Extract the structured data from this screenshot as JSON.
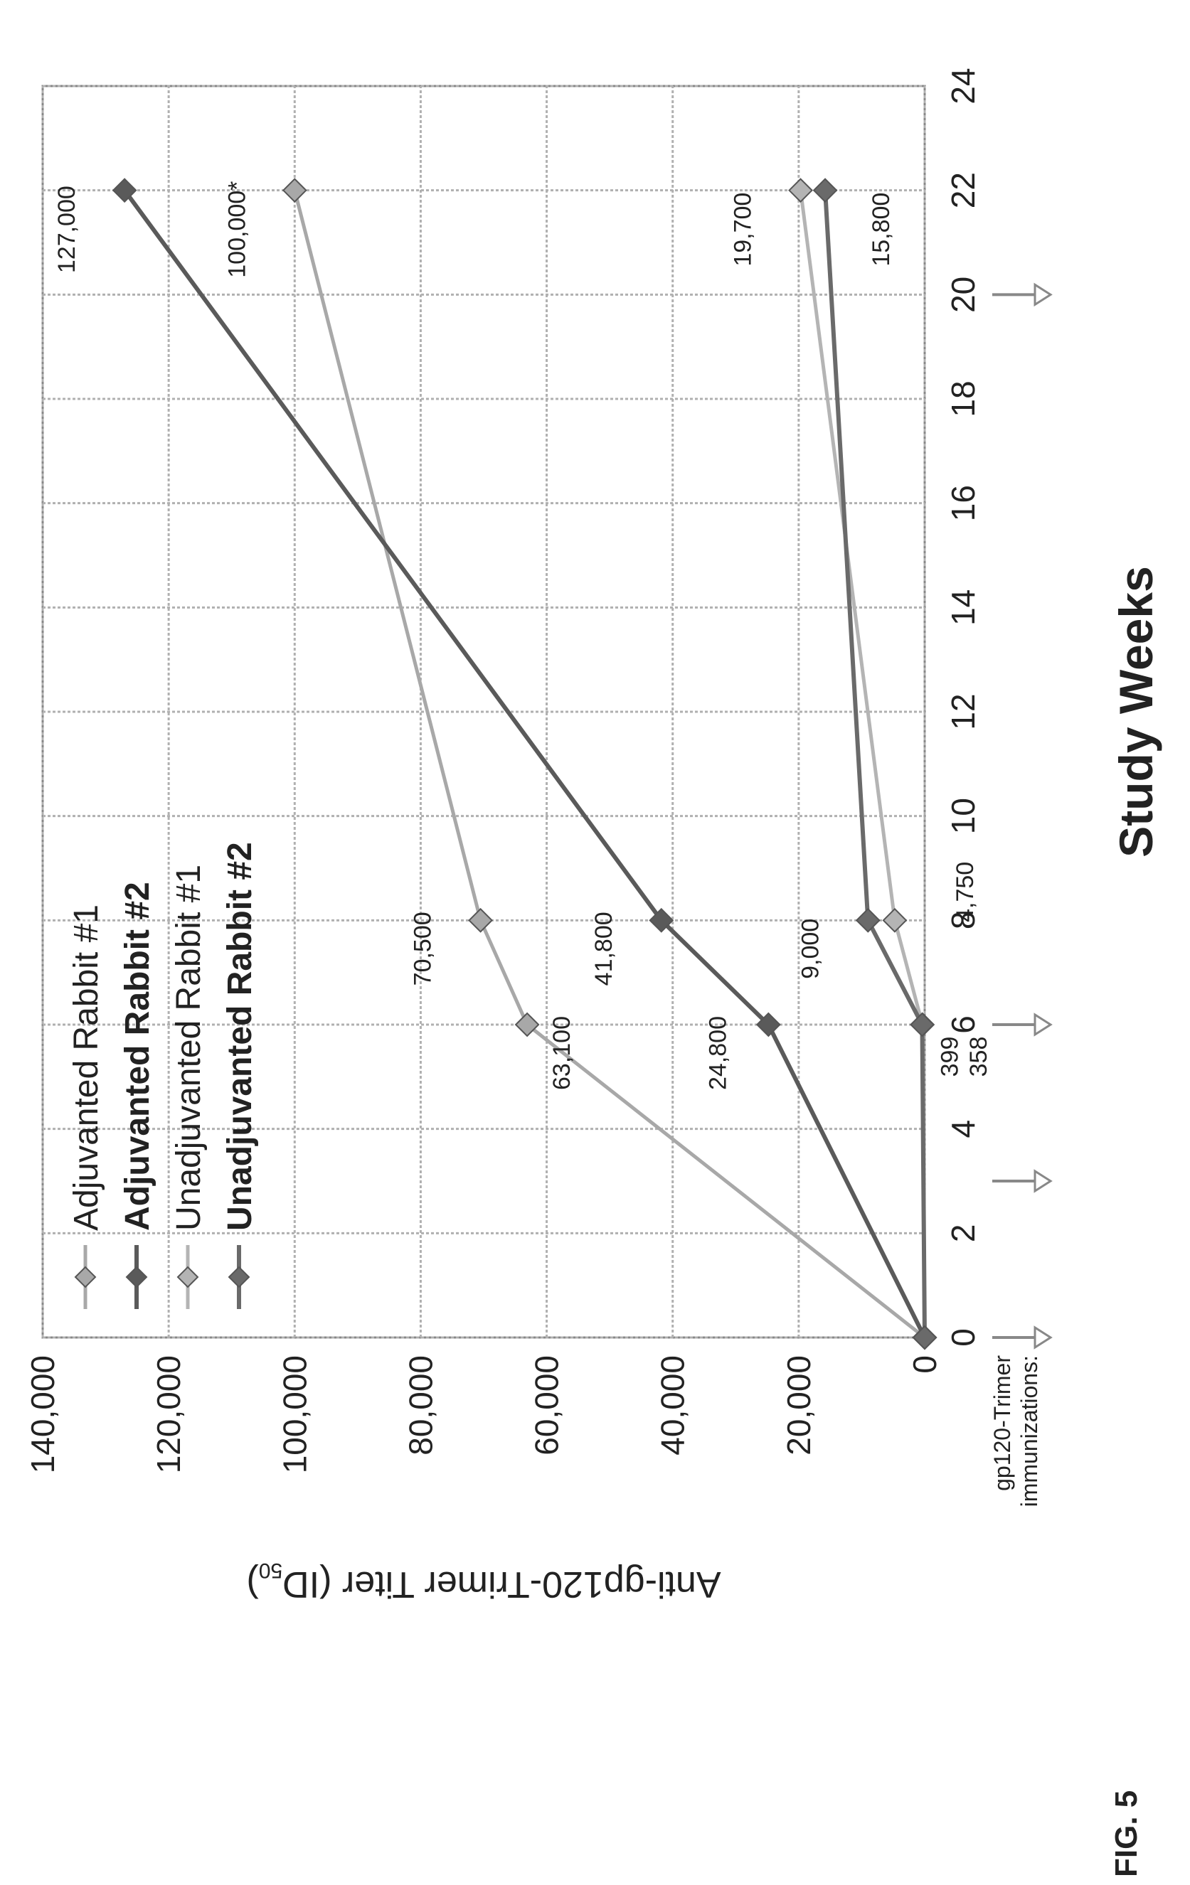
{
  "figure_label": "FIG. 5",
  "chart_data": {
    "type": "line",
    "title": "",
    "xlabel": "Study Weeks",
    "ylabel": "Anti-gp120-Trimer Titer (ID",
    "ylabel_sub": "50",
    "ylabel_end": ")",
    "xlim": [
      0,
      24
    ],
    "ylim": [
      0,
      140000
    ],
    "x_ticks": [
      "0",
      "2",
      "4",
      "6",
      "8",
      "10",
      "12",
      "14",
      "16",
      "18",
      "20",
      "22",
      "24"
    ],
    "y_ticks": [
      "0",
      "20,000",
      "40,000",
      "60,000",
      "80,000",
      "100,000",
      "120,000",
      "140,000"
    ],
    "x_tick_values": [
      0,
      2,
      4,
      6,
      8,
      10,
      12,
      14,
      16,
      18,
      20,
      22,
      24
    ],
    "y_tick_values": [
      0,
      20000,
      40000,
      60000,
      80000,
      100000,
      120000,
      140000
    ],
    "grid": true,
    "legend_position": "top-left",
    "immunization_label_line1": "gp120-Trimer",
    "immunization_label_line2": "immunizations:",
    "immunization_weeks": [
      0,
      3,
      6,
      20
    ],
    "series": [
      {
        "name": "Adjuvanted Rabbit #1",
        "color": "#a8a8a8",
        "width": 5,
        "x": [
          0,
          6,
          8,
          22
        ],
        "y": [
          0,
          63100,
          70500,
          100000
        ],
        "labels": [
          "",
          "63,100",
          "70,500",
          "100,000*"
        ]
      },
      {
        "name": "Adjuvanted Rabbit #2",
        "color": "#5a5a5a",
        "width": 6,
        "x": [
          0,
          6,
          8,
          22
        ],
        "y": [
          0,
          24800,
          41800,
          127000
        ],
        "labels": [
          "",
          "24,800",
          "41,800",
          "127,000"
        ]
      },
      {
        "name": "Unadjuvanted Rabbit #1",
        "color": "#b4b4b4",
        "width": 5,
        "x": [
          0,
          6,
          8,
          22
        ],
        "y": [
          0,
          358,
          4750,
          19700
        ],
        "labels": [
          "",
          "358",
          "4,750",
          "19,700"
        ]
      },
      {
        "name": "Unadjuvanted Rabbit #2",
        "color": "#6a6a6a",
        "width": 6,
        "x": [
          0,
          6,
          8,
          22
        ],
        "y": [
          0,
          399,
          9000,
          15800
        ],
        "labels": [
          "",
          "399",
          "9,000",
          "15,800"
        ]
      }
    ]
  }
}
